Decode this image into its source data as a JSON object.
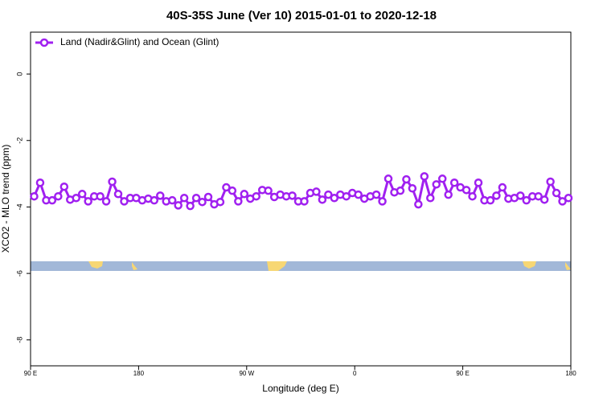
{
  "chart_data": {
    "type": "line",
    "title": "40S-35S June (Ver 10)   2015-01-01 to 2020-12-18",
    "xlabel": "Longitude (deg E)",
    "ylabel": "XCO2 - MLO trend (ppm)",
    "xlim": [
      90,
      540
    ],
    "xticks": [
      {
        "value": 90,
        "label": "90 E"
      },
      180,
      {
        "value": 270,
        "label": "90 W"
      },
      {
        "value": 360,
        "label": "0"
      },
      {
        "value": 450,
        "label": "90 E"
      },
      {
        "value": 540,
        "label": "180"
      }
    ],
    "ylim": [
      -8.78,
      1.26
    ],
    "yticks": [
      0,
      -2,
      -4,
      -6,
      -8
    ],
    "legend": "top-left",
    "x": [
      93,
      98,
      103,
      108,
      113,
      118,
      123,
      128,
      133,
      138,
      143,
      148,
      153,
      158,
      163,
      168,
      173,
      178,
      183,
      188,
      193,
      198,
      203,
      208,
      213,
      218,
      223,
      228,
      233,
      238,
      243,
      248,
      253,
      258,
      263,
      268,
      273,
      278,
      283,
      288,
      293,
      298,
      303,
      308,
      313,
      318,
      323,
      328,
      333,
      338,
      343,
      348,
      353,
      358,
      363,
      368,
      373,
      378,
      383,
      388,
      393,
      398,
      403,
      408,
      413,
      418,
      423,
      428,
      433,
      438,
      443,
      448,
      453,
      458,
      463,
      468,
      473,
      478,
      483,
      488,
      493,
      498,
      503,
      508,
      513,
      518,
      523,
      528,
      533,
      538
    ],
    "series": [
      {
        "name": "Land (Nadir&Glint) and Ocean (Glint)",
        "color": "#a020f0",
        "values": [
          -3.68,
          -3.27,
          -3.8,
          -3.8,
          -3.68,
          -3.39,
          -3.78,
          -3.73,
          -3.61,
          -3.83,
          -3.68,
          -3.68,
          -3.83,
          -3.24,
          -3.61,
          -3.83,
          -3.73,
          -3.73,
          -3.8,
          -3.75,
          -3.8,
          -3.66,
          -3.83,
          -3.8,
          -3.95,
          -3.73,
          -3.97,
          -3.73,
          -3.85,
          -3.7,
          -3.92,
          -3.85,
          -3.41,
          -3.51,
          -3.83,
          -3.61,
          -3.75,
          -3.68,
          -3.49,
          -3.51,
          -3.7,
          -3.63,
          -3.68,
          -3.66,
          -3.83,
          -3.83,
          -3.58,
          -3.54,
          -3.78,
          -3.63,
          -3.73,
          -3.63,
          -3.68,
          -3.58,
          -3.63,
          -3.75,
          -3.68,
          -3.63,
          -3.83,
          -3.15,
          -3.56,
          -3.51,
          -3.17,
          -3.44,
          -3.92,
          -3.08,
          -3.73,
          -3.32,
          -3.15,
          -3.63,
          -3.27,
          -3.41,
          -3.49,
          -3.68,
          -3.27,
          -3.8,
          -3.8,
          -3.66,
          -3.41,
          -3.75,
          -3.73,
          -3.66,
          -3.8,
          -3.68,
          -3.68,
          -3.78,
          -3.24,
          -3.58,
          -3.83,
          -3.73
        ]
      }
    ]
  }
}
